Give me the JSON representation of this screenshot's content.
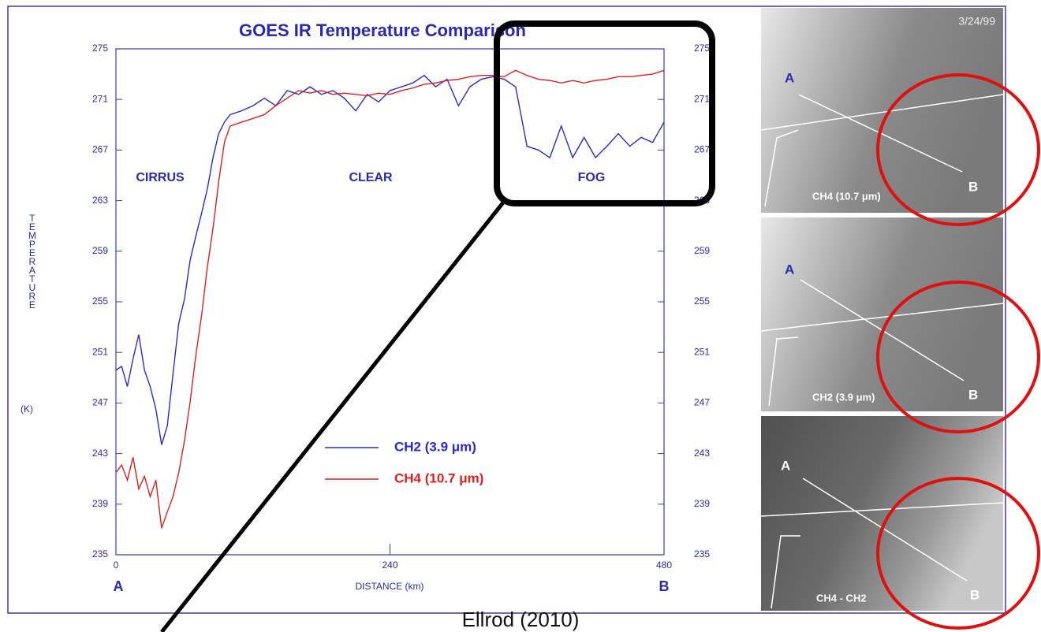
{
  "chart_data": {
    "type": "line",
    "title": "GOES IR Temperature Comparison",
    "x_label": "DISTANCE (km)",
    "y_label": "TEMPERATURE",
    "y_unit": "(K)",
    "endpoints": [
      "A",
      "B"
    ],
    "annotations": [
      "CIRRUS",
      "CLEAR",
      "FOG"
    ],
    "x": [
      0,
      5,
      10,
      15,
      20,
      25,
      30,
      35,
      40,
      45,
      50,
      55,
      60,
      65,
      70,
      75,
      80,
      85,
      90,
      95,
      100,
      110,
      120,
      130,
      140,
      150,
      160,
      170,
      180,
      190,
      200,
      210,
      220,
      230,
      240,
      250,
      260,
      270,
      280,
      290,
      300,
      310,
      320,
      330,
      340,
      350,
      360,
      370,
      380,
      390,
      400,
      410,
      420,
      430,
      440,
      450,
      460,
      470,
      480
    ],
    "series": [
      {
        "name": "CH2 (3.9 μm)",
        "color": "#2a2ad0",
        "values": [
          249.6,
          249.9,
          248.3,
          250.5,
          252.4,
          249.6,
          248.3,
          246.5,
          243.7,
          245.2,
          249.3,
          253.3,
          255.2,
          258.3,
          260.2,
          262,
          263.9,
          266.4,
          268.3,
          269.2,
          269.8,
          270.1,
          270.5,
          271.1,
          270.5,
          271.7,
          271.4,
          272,
          271.4,
          271.7,
          271.1,
          270.1,
          271.4,
          270.8,
          271.7,
          272,
          272.3,
          272.9,
          272,
          272.6,
          270.5,
          272,
          272.6,
          272.8,
          272.6,
          272,
          267.3,
          267,
          266.4,
          268.9,
          266.4,
          268,
          266.4,
          267.3,
          268.3,
          267.3,
          268,
          267.6,
          269.2
        ]
      },
      {
        "name": "CH4 (10.7 μm)",
        "color": "#e02020",
        "values": [
          241.5,
          242.1,
          240.9,
          242.7,
          240.2,
          241.2,
          239.6,
          240.9,
          237.1,
          238.4,
          239.6,
          241.5,
          244,
          247.1,
          250.8,
          253.9,
          257.7,
          260.8,
          264.5,
          267.6,
          268.9,
          269.2,
          269.5,
          269.8,
          270.5,
          271.1,
          271.7,
          271.5,
          271.7,
          271.4,
          271.5,
          271.4,
          271.3,
          271.5,
          271.4,
          271.7,
          271.9,
          272.2,
          272.3,
          272.5,
          272.6,
          272.8,
          272.9,
          272.9,
          272.8,
          273.3,
          272.9,
          272.6,
          272.5,
          272.3,
          272.5,
          272.3,
          272.5,
          272.6,
          272.8,
          272.8,
          272.9,
          273,
          273.3
        ]
      }
    ],
    "xlim": [
      0,
      480
    ],
    "xticks": [
      0,
      240,
      480
    ],
    "ylim": [
      235,
      275
    ],
    "yticks": [
      235,
      239,
      243,
      247,
      251,
      255,
      259,
      263,
      267,
      271,
      275
    ],
    "panels": {
      "date": "3/24/99",
      "points": [
        "A",
        "B"
      ],
      "labels": [
        "CH4 (10.7 μm)",
        "CH2 (3.9 μm)",
        "CH4 - CH2"
      ]
    },
    "caption": "Ellrod (2010)"
  }
}
